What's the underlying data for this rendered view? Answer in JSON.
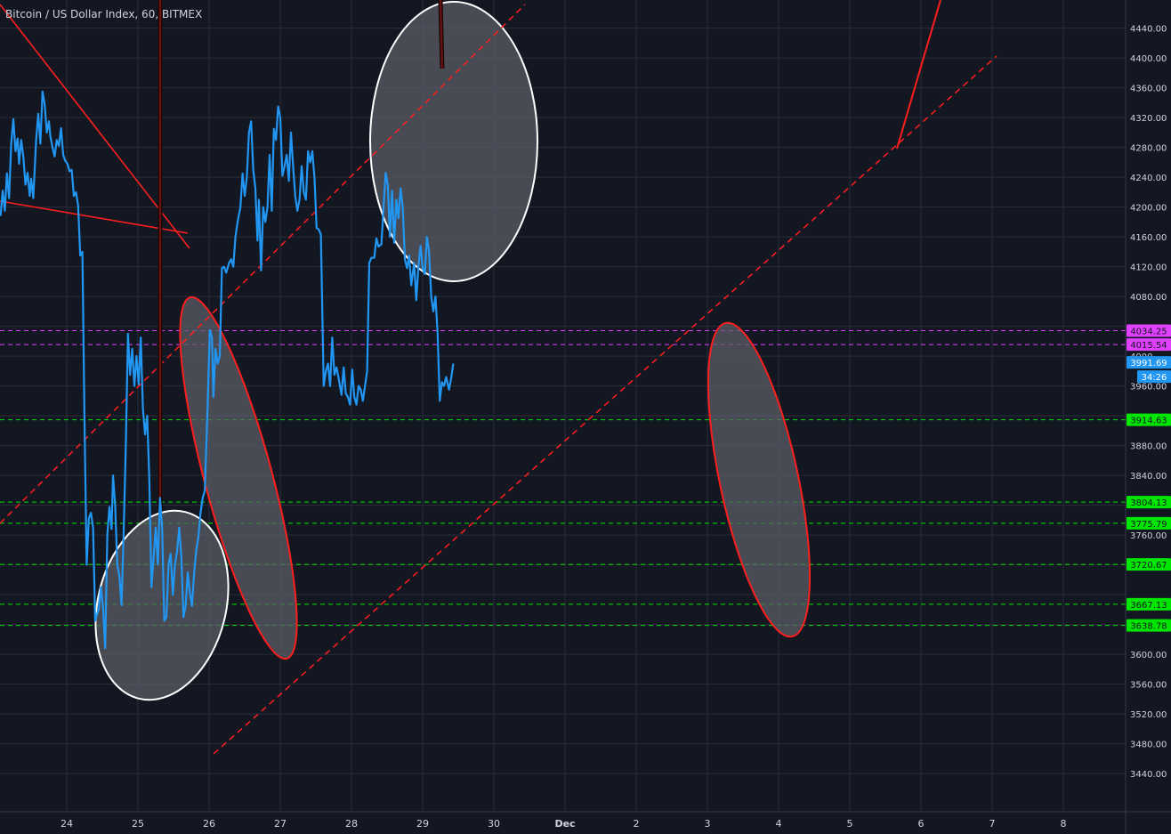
{
  "title": "Bitcoin / US Dollar Index, 60, BITMEX",
  "colors": {
    "background": "#131722",
    "grid": "#2a2e39",
    "price_line": "#2196f3",
    "trend_red": "#ff1e1e",
    "level_green": "#00e600",
    "level_magenta": "#e040fb",
    "ellipse_fill": "#5d6068",
    "axis_text": "#d1d4dc"
  },
  "chart_data": {
    "type": "line",
    "title": "Bitcoin / US Dollar Index, 60, BITMEX",
    "xlabel": "",
    "ylabel": "",
    "x_ticks": [
      "24",
      "25",
      "26",
      "27",
      "28",
      "29",
      "30",
      "Dec",
      "2",
      "3",
      "4",
      "5",
      "6",
      "7",
      "8"
    ],
    "y_ticks": [
      4440,
      4400,
      4360,
      4320,
      4280,
      4240,
      4200,
      4160,
      4120,
      4080,
      3960,
      3880,
      3840,
      3760,
      3600,
      3560,
      3520,
      3480,
      3440
    ],
    "ylim": [
      3410,
      4455
    ],
    "xlim": [
      23.07,
      31.8
    ],
    "grid": true,
    "series": [
      {
        "values": [
          [
            23.07,
            4188
          ],
          [
            23.1,
            4222
          ],
          [
            23.13,
            4195
          ],
          [
            23.16,
            4245
          ],
          [
            23.19,
            4212
          ],
          [
            23.22,
            4285
          ],
          [
            23.25,
            4318
          ],
          [
            23.28,
            4275
          ],
          [
            23.31,
            4292
          ],
          [
            23.33,
            4258
          ],
          [
            23.36,
            4290
          ],
          [
            23.39,
            4268
          ],
          [
            23.42,
            4230
          ],
          [
            23.45,
            4246
          ],
          [
            23.48,
            4215
          ],
          [
            23.5,
            4238
          ],
          [
            23.53,
            4212
          ],
          [
            23.57,
            4290
          ],
          [
            23.6,
            4325
          ],
          [
            23.63,
            4285
          ],
          [
            23.66,
            4355
          ],
          [
            23.69,
            4338
          ],
          [
            23.72,
            4300
          ],
          [
            23.75,
            4315
          ],
          [
            23.77,
            4295
          ],
          [
            23.8,
            4280
          ],
          [
            23.83,
            4268
          ],
          [
            23.86,
            4290
          ],
          [
            23.89,
            4282
          ],
          [
            23.92,
            4306
          ],
          [
            23.95,
            4270
          ],
          [
            23.98,
            4262
          ],
          [
            24.01,
            4258
          ],
          [
            24.04,
            4248
          ],
          [
            24.07,
            4250
          ],
          [
            24.1,
            4215
          ],
          [
            24.13,
            4220
          ],
          [
            24.16,
            4202
          ],
          [
            24.19,
            4135
          ],
          [
            24.22,
            4140
          ],
          [
            24.25,
            3910
          ],
          [
            24.28,
            3720
          ],
          [
            24.31,
            3782
          ],
          [
            24.34,
            3790
          ],
          [
            24.37,
            3770
          ],
          [
            24.4,
            3645
          ],
          [
            24.43,
            3655
          ],
          [
            24.45,
            3660
          ],
          [
            24.48,
            3690
          ],
          [
            24.51,
            3663
          ],
          [
            24.54,
            3608
          ],
          [
            24.57,
            3760
          ],
          [
            24.6,
            3798
          ],
          [
            24.63,
            3768
          ],
          [
            24.65,
            3840
          ],
          [
            24.68,
            3800
          ],
          [
            24.71,
            3720
          ],
          [
            24.74,
            3705
          ],
          [
            24.77,
            3666
          ],
          [
            24.8,
            3765
          ],
          [
            24.83,
            3880
          ],
          [
            24.86,
            4030
          ],
          [
            24.89,
            3975
          ],
          [
            24.92,
            4010
          ],
          [
            24.95,
            3960
          ],
          [
            24.98,
            4000
          ],
          [
            25.01,
            3962
          ],
          [
            25.04,
            4025
          ],
          [
            25.07,
            3930
          ],
          [
            25.1,
            3895
          ],
          [
            25.13,
            3920
          ],
          [
            25.16,
            3835
          ],
          [
            25.19,
            3690
          ],
          [
            25.22,
            3730
          ],
          [
            25.25,
            3770
          ],
          [
            25.28,
            3720
          ],
          [
            25.31,
            3810
          ],
          [
            25.34,
            3770
          ],
          [
            25.37,
            3645
          ],
          [
            25.4,
            3650
          ],
          [
            25.43,
            3720
          ],
          [
            25.46,
            3735
          ],
          [
            25.49,
            3680
          ],
          [
            25.52,
            3720
          ],
          [
            25.55,
            3738
          ],
          [
            25.58,
            3770
          ],
          [
            25.61,
            3730
          ],
          [
            25.64,
            3650
          ],
          [
            25.67,
            3665
          ],
          [
            25.7,
            3710
          ],
          [
            25.73,
            3682
          ],
          [
            25.76,
            3665
          ],
          [
            25.79,
            3710
          ],
          [
            25.82,
            3740
          ],
          [
            25.85,
            3758
          ],
          [
            25.88,
            3790
          ],
          [
            25.91,
            3810
          ],
          [
            25.94,
            3820
          ],
          [
            25.98,
            3935
          ],
          [
            26.01,
            4035
          ],
          [
            26.04,
            4025
          ],
          [
            26.06,
            3945
          ],
          [
            26.09,
            4010
          ],
          [
            26.12,
            3990
          ],
          [
            26.15,
            4000
          ],
          [
            26.18,
            4118
          ],
          [
            26.21,
            4120
          ],
          [
            26.24,
            4112
          ],
          [
            26.28,
            4125
          ],
          [
            26.31,
            4130
          ],
          [
            26.34,
            4120
          ],
          [
            26.37,
            4160
          ],
          [
            26.4,
            4180
          ],
          [
            26.44,
            4200
          ],
          [
            26.47,
            4245
          ],
          [
            26.5,
            4215
          ],
          [
            26.53,
            4240
          ],
          [
            26.56,
            4300
          ],
          [
            26.59,
            4315
          ],
          [
            26.62,
            4250
          ],
          [
            26.65,
            4225
          ],
          [
            26.68,
            4155
          ],
          [
            26.7,
            4210
          ],
          [
            26.73,
            4115
          ],
          [
            26.76,
            4200
          ],
          [
            26.79,
            4180
          ],
          [
            26.82,
            4200
          ],
          [
            26.85,
            4270
          ],
          [
            26.88,
            4195
          ],
          [
            26.91,
            4305
          ],
          [
            26.94,
            4290
          ],
          [
            26.97,
            4335
          ],
          [
            27.0,
            4320
          ],
          [
            27.03,
            4242
          ],
          [
            27.06,
            4255
          ],
          [
            27.09,
            4270
          ],
          [
            27.12,
            4235
          ],
          [
            27.15,
            4300
          ],
          [
            27.18,
            4255
          ],
          [
            27.21,
            4215
          ],
          [
            27.24,
            4195
          ],
          [
            27.27,
            4210
          ],
          [
            27.3,
            4255
          ],
          [
            27.33,
            4220
          ],
          [
            27.36,
            4210
          ],
          [
            27.39,
            4275
          ],
          [
            27.42,
            4260
          ],
          [
            27.45,
            4275
          ],
          [
            27.48,
            4240
          ],
          [
            27.51,
            4172
          ],
          [
            27.54,
            4170
          ],
          [
            27.57,
            4163
          ],
          [
            27.61,
            3960
          ],
          [
            27.64,
            3980
          ],
          [
            27.67,
            3990
          ],
          [
            27.7,
            3960
          ],
          [
            27.73,
            4025
          ],
          [
            27.76,
            3975
          ],
          [
            27.79,
            3985
          ],
          [
            27.82,
            3970
          ],
          [
            27.86,
            3948
          ],
          [
            27.89,
            3985
          ],
          [
            27.92,
            3950
          ],
          [
            27.95,
            3945
          ],
          [
            27.98,
            3935
          ],
          [
            28.01,
            3982
          ],
          [
            28.04,
            3945
          ],
          [
            28.07,
            3935
          ],
          [
            28.1,
            3960
          ],
          [
            28.13,
            3955
          ],
          [
            28.16,
            3940
          ],
          [
            28.19,
            3960
          ],
          [
            28.22,
            3980
          ],
          [
            28.25,
            4125
          ],
          [
            28.28,
            4132
          ],
          [
            28.32,
            4132
          ],
          [
            28.35,
            4158
          ],
          [
            28.38,
            4147
          ],
          [
            28.42,
            4150
          ],
          [
            28.45,
            4198
          ],
          [
            28.48,
            4246
          ],
          [
            28.51,
            4230
          ],
          [
            28.54,
            4160
          ],
          [
            28.57,
            4222
          ],
          [
            28.6,
            4152
          ],
          [
            28.63,
            4210
          ],
          [
            28.66,
            4185
          ],
          [
            28.69,
            4225
          ],
          [
            28.72,
            4200
          ],
          [
            28.75,
            4130
          ],
          [
            28.78,
            4118
          ],
          [
            28.81,
            4135
          ],
          [
            28.84,
            4095
          ],
          [
            28.88,
            4125
          ],
          [
            28.91,
            4075
          ],
          [
            28.94,
            4120
          ],
          [
            28.97,
            4148
          ],
          [
            29.0,
            4118
          ],
          [
            29.03,
            4110
          ],
          [
            29.06,
            4160
          ],
          [
            29.09,
            4140
          ],
          [
            29.12,
            4080
          ],
          [
            29.15,
            4060
          ],
          [
            29.18,
            4080
          ],
          [
            29.21,
            4030
          ],
          [
            29.24,
            3940
          ],
          [
            29.27,
            3965
          ],
          [
            29.3,
            3960
          ],
          [
            29.33,
            3972
          ],
          [
            29.37,
            3955
          ],
          [
            29.4,
            3970
          ],
          [
            29.43,
            3990
          ]
        ]
      }
    ],
    "price_labels": [
      {
        "value": 4034.25,
        "color": "#e040fb"
      },
      {
        "value": 4015.54,
        "color": "#e040fb"
      },
      {
        "value": 3991.69,
        "color": "#2196f3"
      },
      {
        "value": 3914.63,
        "color": "#00e600"
      },
      {
        "value": 3804.13,
        "color": "#00e600"
      },
      {
        "value": 3775.79,
        "color": "#00e600"
      },
      {
        "value": 3720.67,
        "color": "#00e600"
      },
      {
        "value": 3667.13,
        "color": "#00e600"
      },
      {
        "value": 3638.78,
        "color": "#00e600"
      }
    ],
    "countdown": "34:26",
    "partial_tick": "4000"
  }
}
